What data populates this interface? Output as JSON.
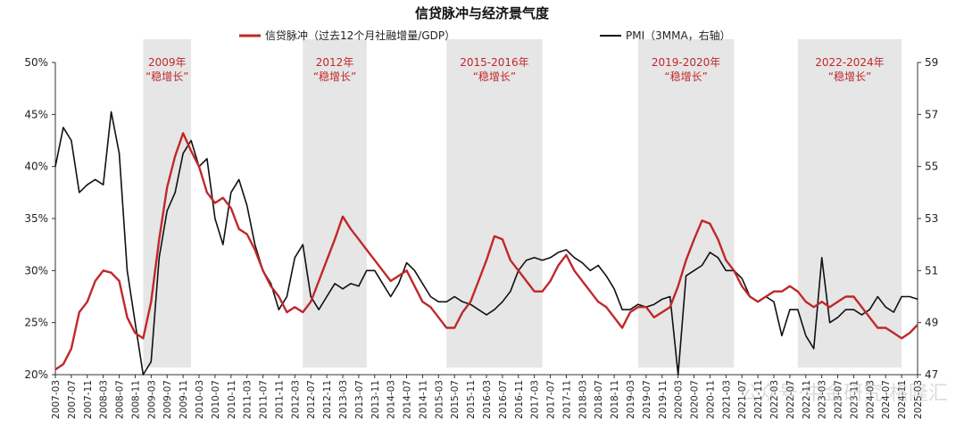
{
  "chart_data": {
    "type": "line",
    "title": "信贷脉冲与经济景气度",
    "legend": [
      {
        "name": "信贷脉冲（过去12个月社融增量/GDP）",
        "color": "#c0282a",
        "axis": "left"
      },
      {
        "name": "PMI（3MMA，右轴）",
        "color": "#111111",
        "axis": "right"
      }
    ],
    "left_axis": {
      "min": 0.2,
      "max": 0.5,
      "ticks": [
        "20%",
        "25%",
        "30%",
        "35%",
        "40%",
        "45%",
        "50%"
      ]
    },
    "right_axis": {
      "min": 47,
      "max": 59,
      "ticks": [
        "47",
        "49",
        "51",
        "53",
        "55",
        "57",
        "59"
      ]
    },
    "x_range": [
      "2007-03",
      "2025-03"
    ],
    "x_ticks": [
      "2007-03",
      "2007-07",
      "2007-11",
      "2008-03",
      "2008-07",
      "2008-11",
      "2009-03",
      "2009-07",
      "2009-11",
      "2010-03",
      "2010-07",
      "2010-11",
      "2011-03",
      "2011-07",
      "2011-11",
      "2012-03",
      "2012-07",
      "2012-11",
      "2013-03",
      "2013-07",
      "2013-11",
      "2014-03",
      "2014-07",
      "2014-11",
      "2015-03",
      "2015-07",
      "2015-11",
      "2016-03",
      "2016-07",
      "2016-11",
      "2017-03",
      "2017-07",
      "2017-11",
      "2018-03",
      "2018-07",
      "2018-11",
      "2019-03",
      "2019-07",
      "2019-11",
      "2020-03",
      "2020-07",
      "2020-11",
      "2021-03",
      "2021-07",
      "2021-11",
      "2022-03",
      "2022-07",
      "2022-11",
      "2023-03",
      "2023-07",
      "2023-11",
      "2024-03",
      "2024-07",
      "2024-11",
      "2025-03"
    ],
    "shaded_periods": [
      {
        "label_line1": "2009年",
        "label_line2": "“稳增长”",
        "start": "2009-01",
        "end": "2010-01"
      },
      {
        "label_line1": "2012年",
        "label_line2": "“稳增长”",
        "start": "2012-05",
        "end": "2013-09"
      },
      {
        "label_line1": "2015-2016年",
        "label_line2": "“稳增长”",
        "start": "2015-05",
        "end": "2017-05"
      },
      {
        "label_line1": "2019-2020年",
        "label_line2": "“稳增长”",
        "start": "2019-05",
        "end": "2021-05"
      },
      {
        "label_line1": "2022-2024年",
        "label_line2": "“稳增长”",
        "start": "2022-09",
        "end": "2024-11"
      }
    ],
    "series": [
      {
        "name": "信贷脉冲（过去12个月社融增量/GDP）",
        "axis": "left",
        "points": [
          [
            "2007-03",
            0.205
          ],
          [
            "2007-05",
            0.21
          ],
          [
            "2007-07",
            0.225
          ],
          [
            "2007-09",
            0.26
          ],
          [
            "2007-11",
            0.27
          ],
          [
            "2008-01",
            0.29
          ],
          [
            "2008-03",
            0.3
          ],
          [
            "2008-05",
            0.298
          ],
          [
            "2008-07",
            0.29
          ],
          [
            "2008-09",
            0.255
          ],
          [
            "2008-11",
            0.24
          ],
          [
            "2009-01",
            0.235
          ],
          [
            "2009-03",
            0.27
          ],
          [
            "2009-05",
            0.33
          ],
          [
            "2009-07",
            0.38
          ],
          [
            "2009-09",
            0.41
          ],
          [
            "2009-11",
            0.432
          ],
          [
            "2010-01",
            0.415
          ],
          [
            "2010-03",
            0.4
          ],
          [
            "2010-05",
            0.375
          ],
          [
            "2010-07",
            0.365
          ],
          [
            "2010-09",
            0.37
          ],
          [
            "2010-11",
            0.36
          ],
          [
            "2011-01",
            0.34
          ],
          [
            "2011-03",
            0.335
          ],
          [
            "2011-05",
            0.32
          ],
          [
            "2011-07",
            0.3
          ],
          [
            "2011-09",
            0.285
          ],
          [
            "2011-11",
            0.275
          ],
          [
            "2012-01",
            0.26
          ],
          [
            "2012-03",
            0.265
          ],
          [
            "2012-05",
            0.26
          ],
          [
            "2012-07",
            0.27
          ],
          [
            "2012-09",
            0.29
          ],
          [
            "2012-11",
            0.31
          ],
          [
            "2013-01",
            0.33
          ],
          [
            "2013-03",
            0.352
          ],
          [
            "2013-05",
            0.34
          ],
          [
            "2013-07",
            0.33
          ],
          [
            "2013-09",
            0.32
          ],
          [
            "2013-11",
            0.31
          ],
          [
            "2014-01",
            0.3
          ],
          [
            "2014-03",
            0.29
          ],
          [
            "2014-05",
            0.295
          ],
          [
            "2014-07",
            0.3
          ],
          [
            "2014-09",
            0.285
          ],
          [
            "2014-11",
            0.27
          ],
          [
            "2015-01",
            0.265
          ],
          [
            "2015-03",
            0.255
          ],
          [
            "2015-05",
            0.245
          ],
          [
            "2015-07",
            0.245
          ],
          [
            "2015-09",
            0.26
          ],
          [
            "2015-11",
            0.27
          ],
          [
            "2016-01",
            0.29
          ],
          [
            "2016-03",
            0.31
          ],
          [
            "2016-05",
            0.333
          ],
          [
            "2016-07",
            0.33
          ],
          [
            "2016-09",
            0.31
          ],
          [
            "2016-11",
            0.3
          ],
          [
            "2017-01",
            0.29
          ],
          [
            "2017-03",
            0.28
          ],
          [
            "2017-05",
            0.28
          ],
          [
            "2017-07",
            0.29
          ],
          [
            "2017-09",
            0.305
          ],
          [
            "2017-11",
            0.315
          ],
          [
            "2018-01",
            0.3
          ],
          [
            "2018-03",
            0.29
          ],
          [
            "2018-05",
            0.28
          ],
          [
            "2018-07",
            0.27
          ],
          [
            "2018-09",
            0.265
          ],
          [
            "2018-11",
            0.255
          ],
          [
            "2019-01",
            0.245
          ],
          [
            "2019-03",
            0.26
          ],
          [
            "2019-05",
            0.265
          ],
          [
            "2019-07",
            0.265
          ],
          [
            "2019-09",
            0.255
          ],
          [
            "2019-11",
            0.26
          ],
          [
            "2020-01",
            0.265
          ],
          [
            "2020-03",
            0.285
          ],
          [
            "2020-05",
            0.31
          ],
          [
            "2020-07",
            0.33
          ],
          [
            "2020-09",
            0.348
          ],
          [
            "2020-11",
            0.345
          ],
          [
            "2021-01",
            0.33
          ],
          [
            "2021-03",
            0.31
          ],
          [
            "2021-05",
            0.3
          ],
          [
            "2021-07",
            0.285
          ],
          [
            "2021-09",
            0.275
          ],
          [
            "2021-11",
            0.27
          ],
          [
            "2022-01",
            0.275
          ],
          [
            "2022-03",
            0.28
          ],
          [
            "2022-05",
            0.28
          ],
          [
            "2022-07",
            0.285
          ],
          [
            "2022-09",
            0.28
          ],
          [
            "2022-11",
            0.27
          ],
          [
            "2023-01",
            0.265
          ],
          [
            "2023-03",
            0.27
          ],
          [
            "2023-05",
            0.265
          ],
          [
            "2023-07",
            0.27
          ],
          [
            "2023-09",
            0.275
          ],
          [
            "2023-11",
            0.275
          ],
          [
            "2024-01",
            0.265
          ],
          [
            "2024-03",
            0.255
          ],
          [
            "2024-05",
            0.245
          ],
          [
            "2024-07",
            0.245
          ],
          [
            "2024-09",
            0.24
          ],
          [
            "2024-11",
            0.235
          ],
          [
            "2025-01",
            0.24
          ],
          [
            "2025-03",
            0.248
          ]
        ]
      },
      {
        "name": "PMI（3MMA，右轴）",
        "axis": "right",
        "points": [
          [
            "2007-03",
            55.0
          ],
          [
            "2007-05",
            56.5
          ],
          [
            "2007-07",
            56.0
          ],
          [
            "2007-09",
            54.0
          ],
          [
            "2007-11",
            54.3
          ],
          [
            "2008-01",
            54.5
          ],
          [
            "2008-03",
            54.3
          ],
          [
            "2008-05",
            57.1
          ],
          [
            "2008-07",
            55.5
          ],
          [
            "2008-09",
            51.0
          ],
          [
            "2008-11",
            49.0
          ],
          [
            "2009-01",
            46.0
          ],
          [
            "2009-03",
            47.5
          ],
          [
            "2009-05",
            51.5
          ],
          [
            "2009-07",
            53.3
          ],
          [
            "2009-09",
            54.0
          ],
          [
            "2009-11",
            55.5
          ],
          [
            "2010-01",
            56.0
          ],
          [
            "2010-03",
            55.0
          ],
          [
            "2010-05",
            55.3
          ],
          [
            "2010-07",
            53.0
          ],
          [
            "2010-09",
            52.0
          ],
          [
            "2010-11",
            54.0
          ],
          [
            "2011-01",
            54.5
          ],
          [
            "2011-03",
            53.5
          ],
          [
            "2011-05",
            52.0
          ],
          [
            "2011-07",
            51.0
          ],
          [
            "2011-09",
            50.5
          ],
          [
            "2011-11",
            49.5
          ],
          [
            "2012-01",
            50.0
          ],
          [
            "2012-03",
            51.5
          ],
          [
            "2012-05",
            52.0
          ],
          [
            "2012-07",
            50.0
          ],
          [
            "2012-09",
            49.5
          ],
          [
            "2012-11",
            50.0
          ],
          [
            "2013-01",
            50.5
          ],
          [
            "2013-03",
            50.3
          ],
          [
            "2013-05",
            50.5
          ],
          [
            "2013-07",
            50.4
          ],
          [
            "2013-09",
            51.0
          ],
          [
            "2013-11",
            51.0
          ],
          [
            "2014-01",
            50.5
          ],
          [
            "2014-03",
            50.0
          ],
          [
            "2014-05",
            50.5
          ],
          [
            "2014-07",
            51.3
          ],
          [
            "2014-09",
            51.0
          ],
          [
            "2014-11",
            50.5
          ],
          [
            "2015-01",
            50.0
          ],
          [
            "2015-03",
            49.8
          ],
          [
            "2015-05",
            49.8
          ],
          [
            "2015-07",
            50.0
          ],
          [
            "2015-09",
            49.8
          ],
          [
            "2015-11",
            49.7
          ],
          [
            "2016-01",
            49.5
          ],
          [
            "2016-03",
            49.3
          ],
          [
            "2016-05",
            49.5
          ],
          [
            "2016-07",
            49.8
          ],
          [
            "2016-09",
            50.2
          ],
          [
            "2016-11",
            51.0
          ],
          [
            "2017-01",
            51.4
          ],
          [
            "2017-03",
            51.5
          ],
          [
            "2017-05",
            51.4
          ],
          [
            "2017-07",
            51.5
          ],
          [
            "2017-09",
            51.7
          ],
          [
            "2017-11",
            51.8
          ],
          [
            "2018-01",
            51.5
          ],
          [
            "2018-03",
            51.3
          ],
          [
            "2018-05",
            51.0
          ],
          [
            "2018-07",
            51.2
          ],
          [
            "2018-09",
            50.8
          ],
          [
            "2018-11",
            50.3
          ],
          [
            "2019-01",
            49.5
          ],
          [
            "2019-03",
            49.5
          ],
          [
            "2019-05",
            49.7
          ],
          [
            "2019-07",
            49.6
          ],
          [
            "2019-09",
            49.7
          ],
          [
            "2019-11",
            49.9
          ],
          [
            "2020-01",
            50.0
          ],
          [
            "2020-03",
            45.0
          ],
          [
            "2020-05",
            50.8
          ],
          [
            "2020-07",
            51.0
          ],
          [
            "2020-09",
            51.2
          ],
          [
            "2020-11",
            51.7
          ],
          [
            "2021-01",
            51.5
          ],
          [
            "2021-03",
            51.0
          ],
          [
            "2021-05",
            51.0
          ],
          [
            "2021-07",
            50.7
          ],
          [
            "2021-09",
            50.0
          ],
          [
            "2021-11",
            49.8
          ],
          [
            "2022-01",
            50.0
          ],
          [
            "2022-03",
            49.8
          ],
          [
            "2022-05",
            48.5
          ],
          [
            "2022-07",
            49.5
          ],
          [
            "2022-09",
            49.5
          ],
          [
            "2022-11",
            48.5
          ],
          [
            "2023-01",
            48.0
          ],
          [
            "2023-03",
            51.5
          ],
          [
            "2023-05",
            49.0
          ],
          [
            "2023-07",
            49.2
          ],
          [
            "2023-09",
            49.5
          ],
          [
            "2023-11",
            49.5
          ],
          [
            "2024-01",
            49.3
          ],
          [
            "2024-03",
            49.5
          ],
          [
            "2024-05",
            50.0
          ],
          [
            "2024-07",
            49.6
          ],
          [
            "2024-09",
            49.4
          ],
          [
            "2024-11",
            50.0
          ],
          [
            "2025-01",
            50.0
          ],
          [
            "2025-03",
            49.9
          ]
        ]
      }
    ],
    "watermark": "公众号·中金研究 格隆汇"
  }
}
